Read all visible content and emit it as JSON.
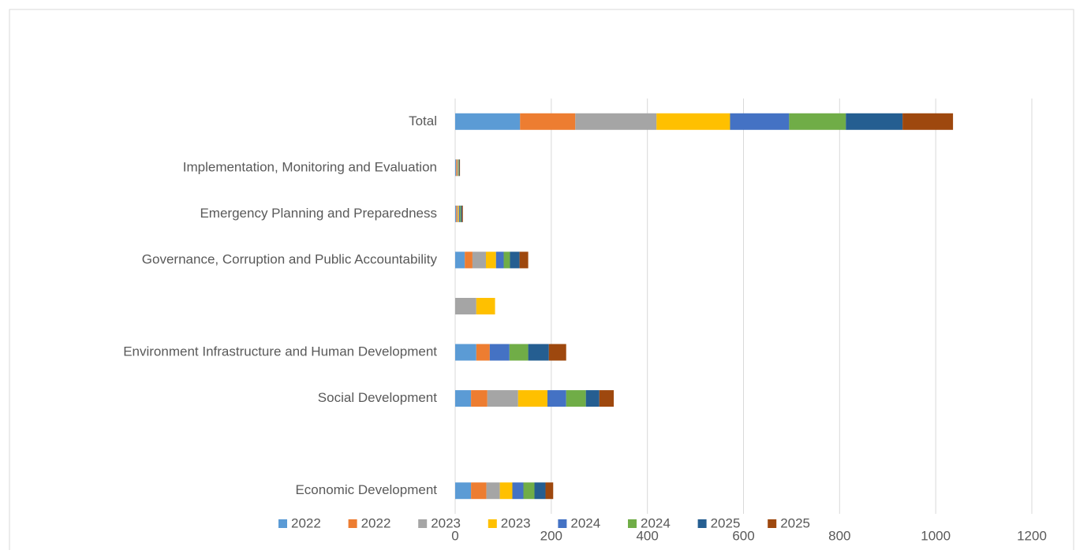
{
  "chart_data": {
    "type": "bar",
    "orientation": "horizontal",
    "stacked": true,
    "categories": [
      "Economic Development",
      null,
      "Social Development",
      "Environment Infrastructure and Human Development",
      null,
      "Governance, Corruption and Public Accountability",
      "Emergency Planning and Preparedness",
      "Implementation, Monitoring and Evaluation",
      "Total"
    ],
    "series": [
      {
        "name": "2022",
        "color": "#5b9bd5",
        "values": [
          33,
          0,
          33,
          44,
          0,
          20,
          2,
          2,
          135
        ]
      },
      {
        "name": "2022",
        "color": "#ed7d31",
        "values": [
          32,
          0,
          34,
          28,
          0,
          16,
          2,
          2,
          115
        ]
      },
      {
        "name": "2023",
        "color": "#a5a5a5",
        "values": [
          28,
          0,
          64,
          0,
          44,
          28,
          2,
          1,
          169
        ]
      },
      {
        "name": "2023",
        "color": "#ffc000",
        "values": [
          26,
          0,
          61,
          0,
          39,
          21,
          2,
          1,
          153
        ]
      },
      {
        "name": "2024",
        "color": "#4472c4",
        "values": [
          23,
          0,
          39,
          41,
          0,
          16,
          2,
          1,
          123
        ]
      },
      {
        "name": "2024",
        "color": "#70ad47",
        "values": [
          23,
          0,
          41,
          39,
          0,
          13,
          2,
          1,
          118
        ]
      },
      {
        "name": "2025",
        "color": "#255e91",
        "values": [
          23,
          0,
          28,
          43,
          0,
          20,
          2,
          1,
          118
        ]
      },
      {
        "name": "2025",
        "color": "#9e480e",
        "values": [
          16,
          0,
          30,
          36,
          0,
          18,
          2,
          1,
          105
        ]
      }
    ],
    "xlim": [
      0,
      1200
    ],
    "xticks": [
      0,
      200,
      400,
      600,
      800,
      1000,
      1200
    ],
    "grid": true,
    "legend": "bottom"
  }
}
